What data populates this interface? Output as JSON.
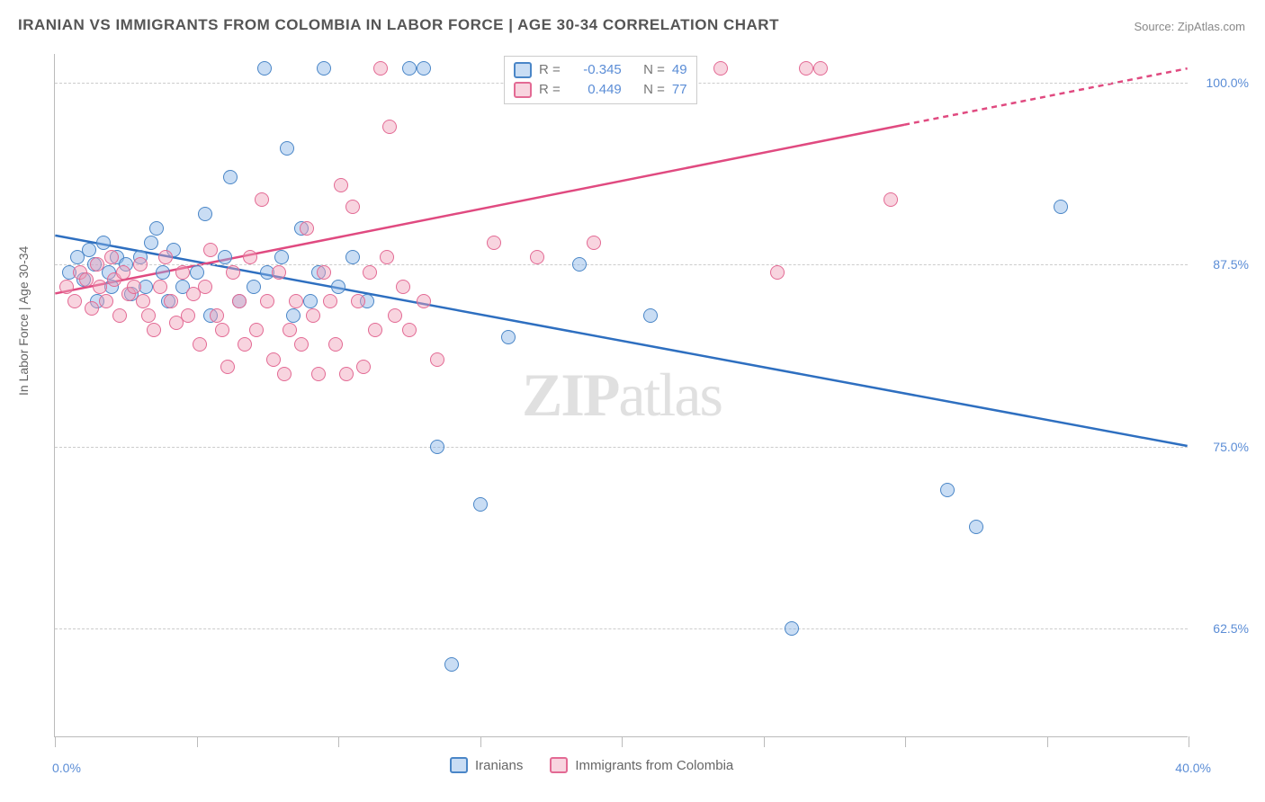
{
  "title": "IRANIAN VS IMMIGRANTS FROM COLOMBIA IN LABOR FORCE | AGE 30-34 CORRELATION CHART",
  "source": "Source: ZipAtlas.com",
  "ylabel": "In Labor Force | Age 30-34",
  "watermark_a": "ZIP",
  "watermark_b": "atlas",
  "chart": {
    "type": "scatter",
    "background_color": "#ffffff",
    "grid_color": "#cccccc",
    "axis_color": "#bbbbbb",
    "xlim": [
      0,
      40
    ],
    "ylim": [
      55,
      102
    ],
    "x_start_label": "0.0%",
    "x_end_label": "40.0%",
    "x_ticks": [
      0,
      5,
      10,
      15,
      20,
      25,
      30,
      35,
      40
    ],
    "y_ticks": [
      {
        "v": 62.5,
        "label": "62.5%"
      },
      {
        "v": 75.0,
        "label": "75.0%"
      },
      {
        "v": 87.5,
        "label": "87.5%"
      },
      {
        "v": 100.0,
        "label": "100.0%"
      }
    ],
    "series": [
      {
        "name": "Iranians",
        "fill": "rgba(135,180,230,0.45)",
        "stroke": "#4a86c7",
        "trend_color": "#2e6fc0",
        "R": "-0.345",
        "N": "49",
        "trend": {
          "x1": 0,
          "y1": 89.5,
          "x2": 40,
          "y2": 75.0,
          "xsolid": 40
        },
        "points": [
          [
            0.5,
            87
          ],
          [
            0.8,
            88
          ],
          [
            1.0,
            86.5
          ],
          [
            1.2,
            88.5
          ],
          [
            1.4,
            87.5
          ],
          [
            1.5,
            85
          ],
          [
            1.7,
            89
          ],
          [
            1.9,
            87
          ],
          [
            2.0,
            86
          ],
          [
            2.2,
            88
          ],
          [
            2.5,
            87.5
          ],
          [
            2.7,
            85.5
          ],
          [
            3.0,
            88
          ],
          [
            3.2,
            86
          ],
          [
            3.4,
            89
          ],
          [
            3.6,
            90
          ],
          [
            3.8,
            87
          ],
          [
            4.0,
            85
          ],
          [
            4.2,
            88.5
          ],
          [
            4.5,
            86
          ],
          [
            5.0,
            87
          ],
          [
            5.3,
            91
          ],
          [
            5.5,
            84
          ],
          [
            6.0,
            88
          ],
          [
            6.2,
            93.5
          ],
          [
            6.5,
            85
          ],
          [
            7.0,
            86
          ],
          [
            7.4,
            101
          ],
          [
            7.5,
            87
          ],
          [
            8.0,
            88
          ],
          [
            8.2,
            95.5
          ],
          [
            8.4,
            84
          ],
          [
            8.7,
            90
          ],
          [
            9.0,
            85
          ],
          [
            9.3,
            87
          ],
          [
            9.5,
            101
          ],
          [
            10.0,
            86
          ],
          [
            10.5,
            88
          ],
          [
            11.0,
            85
          ],
          [
            12.5,
            101
          ],
          [
            13.0,
            101
          ],
          [
            13.5,
            75
          ],
          [
            14.0,
            60
          ],
          [
            15.0,
            71
          ],
          [
            16.0,
            82.5
          ],
          [
            18.5,
            87.5
          ],
          [
            21.0,
            84
          ],
          [
            26.0,
            62.5
          ],
          [
            31.5,
            72
          ],
          [
            32.5,
            69.5
          ],
          [
            35.5,
            91.5
          ]
        ]
      },
      {
        "name": "Immigrants from Colombia",
        "fill": "rgba(240,160,185,0.45)",
        "stroke": "#e36a94",
        "trend_color": "#e04a80",
        "R": "0.449",
        "N": "77",
        "trend": {
          "x1": 0,
          "y1": 85.5,
          "x2": 40,
          "y2": 101.0,
          "xsolid": 30
        },
        "points": [
          [
            0.4,
            86
          ],
          [
            0.7,
            85
          ],
          [
            0.9,
            87
          ],
          [
            1.1,
            86.5
          ],
          [
            1.3,
            84.5
          ],
          [
            1.5,
            87.5
          ],
          [
            1.6,
            86
          ],
          [
            1.8,
            85
          ],
          [
            2.0,
            88
          ],
          [
            2.1,
            86.5
          ],
          [
            2.3,
            84
          ],
          [
            2.4,
            87
          ],
          [
            2.6,
            85.5
          ],
          [
            2.8,
            86
          ],
          [
            3.0,
            87.5
          ],
          [
            3.1,
            85
          ],
          [
            3.3,
            84
          ],
          [
            3.5,
            83
          ],
          [
            3.7,
            86
          ],
          [
            3.9,
            88
          ],
          [
            4.1,
            85
          ],
          [
            4.3,
            83.5
          ],
          [
            4.5,
            87
          ],
          [
            4.7,
            84
          ],
          [
            4.9,
            85.5
          ],
          [
            5.1,
            82
          ],
          [
            5.3,
            86
          ],
          [
            5.5,
            88.5
          ],
          [
            5.7,
            84
          ],
          [
            5.9,
            83
          ],
          [
            6.1,
            80.5
          ],
          [
            6.3,
            87
          ],
          [
            6.5,
            85
          ],
          [
            6.7,
            82
          ],
          [
            6.9,
            88
          ],
          [
            7.1,
            83
          ],
          [
            7.3,
            92
          ],
          [
            7.5,
            85
          ],
          [
            7.7,
            81
          ],
          [
            7.9,
            87
          ],
          [
            8.1,
            80
          ],
          [
            8.3,
            83
          ],
          [
            8.5,
            85
          ],
          [
            8.7,
            82
          ],
          [
            8.9,
            90
          ],
          [
            9.1,
            84
          ],
          [
            9.3,
            80
          ],
          [
            9.5,
            87
          ],
          [
            9.7,
            85
          ],
          [
            9.9,
            82
          ],
          [
            10.1,
            93
          ],
          [
            10.3,
            80
          ],
          [
            10.5,
            91.5
          ],
          [
            10.7,
            85
          ],
          [
            10.9,
            80.5
          ],
          [
            11.1,
            87
          ],
          [
            11.3,
            83
          ],
          [
            11.5,
            101
          ],
          [
            11.7,
            88
          ],
          [
            11.8,
            97
          ],
          [
            12.0,
            84
          ],
          [
            12.3,
            86
          ],
          [
            12.5,
            83
          ],
          [
            13.0,
            85
          ],
          [
            13.5,
            81
          ],
          [
            15.5,
            89
          ],
          [
            17.0,
            88
          ],
          [
            17.5,
            101
          ],
          [
            18.0,
            101
          ],
          [
            19.0,
            89
          ],
          [
            21.0,
            101
          ],
          [
            23.5,
            101
          ],
          [
            25.5,
            87
          ],
          [
            26.5,
            101
          ],
          [
            27.0,
            101
          ],
          [
            29.5,
            92
          ]
        ]
      }
    ]
  },
  "legend_top": {
    "rlabel": "R =",
    "nlabel": "N ="
  },
  "legend_bottom_labels": [
    "Iranians",
    "Immigrants from Colombia"
  ]
}
